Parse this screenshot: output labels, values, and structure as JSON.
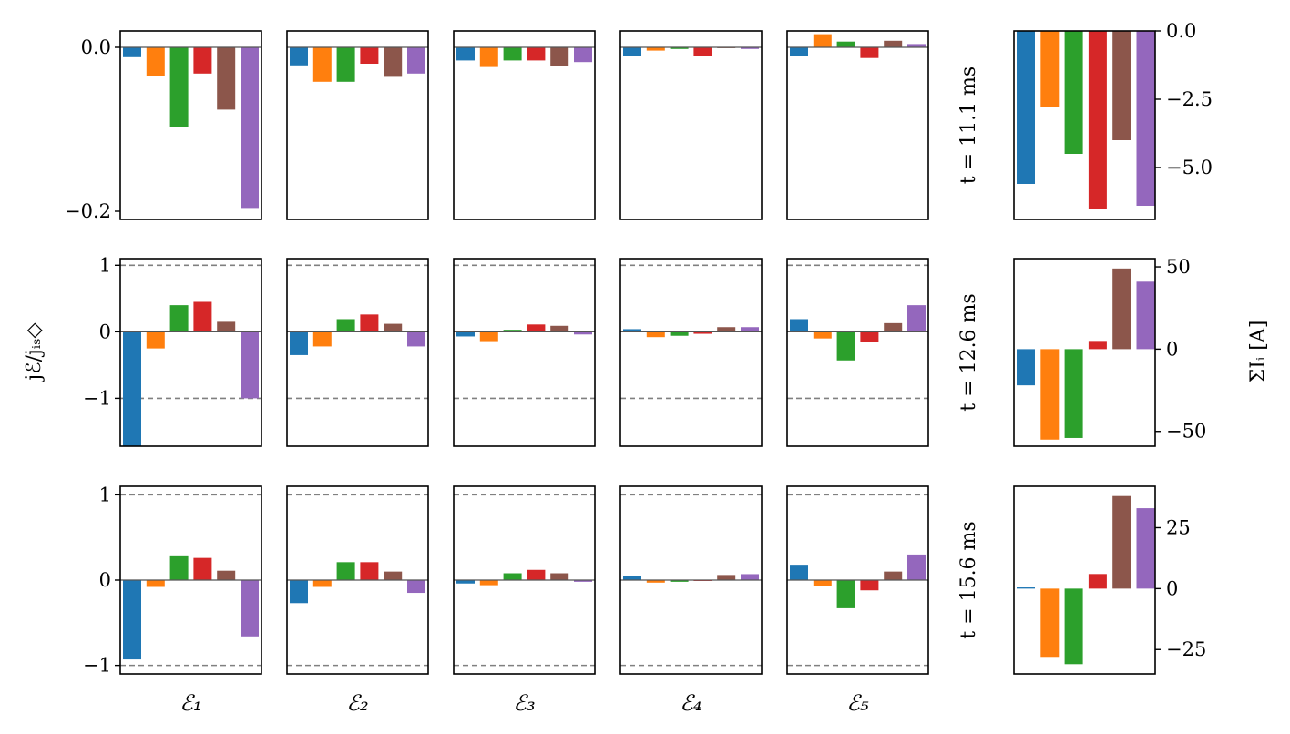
{
  "colors": [
    "#1f77b4",
    "#ff7f0e",
    "#2ca02c",
    "#d62728",
    "#8c564b",
    "#9467bd"
  ],
  "chart_data": {
    "type": "bar",
    "description_axes": "grid of bar charts: 3 time rows x 5 electrode columns, plus a summed-current chart per row",
    "ylabel": "jℰ/jᵢₛ◇",
    "right_ylabel": "ΣIᵢ [A]",
    "columns": [
      "ℰ₁",
      "ℰ₂",
      "ℰ₃",
      "ℰ₄",
      "ℰ₅"
    ],
    "rows": [
      {
        "time_label": "t = 11.1 ms",
        "ylim": [
          -0.21,
          0.02
        ],
        "yticks": [
          0.0,
          -0.2
        ],
        "ytick_labels": [
          "0.0",
          "−0.2"
        ],
        "dashed_lines": [],
        "panels": [
          [
            -0.012,
            -0.035,
            -0.097,
            -0.032,
            -0.076,
            -0.196
          ],
          [
            -0.022,
            -0.042,
            -0.042,
            -0.02,
            -0.036,
            -0.032
          ],
          [
            -0.016,
            -0.024,
            -0.016,
            -0.016,
            -0.023,
            -0.018
          ],
          [
            -0.01,
            -0.004,
            -0.002,
            -0.01,
            -0.001,
            -0.002
          ],
          [
            -0.01,
            0.016,
            0.007,
            -0.013,
            0.008,
            0.004
          ]
        ],
        "sum": {
          "values": [
            -5.6,
            -2.8,
            -4.5,
            -6.5,
            -4.0,
            -6.4
          ],
          "ylim": [
            -6.9,
            0
          ],
          "yticks": [
            0.0,
            -2.5,
            -5.0
          ],
          "ytick_labels": [
            "0.0",
            "−2.5",
            "−5.0"
          ]
        }
      },
      {
        "time_label": "t = 12.6 ms",
        "ylim": [
          -1.72,
          1.1
        ],
        "yticks": [
          1,
          0,
          -1
        ],
        "ytick_labels": [
          "1",
          "0",
          "−1"
        ],
        "dashed_lines": [
          1,
          -1
        ],
        "panels": [
          [
            -1.72,
            -0.25,
            0.4,
            0.45,
            0.15,
            -1.0
          ],
          [
            -0.35,
            -0.22,
            0.19,
            0.26,
            0.12,
            -0.22
          ],
          [
            -0.07,
            -0.14,
            0.03,
            0.11,
            0.09,
            -0.04
          ],
          [
            0.04,
            -0.08,
            -0.06,
            -0.03,
            0.07,
            0.07
          ],
          [
            0.19,
            -0.1,
            -0.43,
            -0.15,
            0.13,
            0.4
          ]
        ],
        "sum": {
          "values": [
            -22,
            -55,
            -54,
            5,
            49,
            41
          ],
          "ylim": [
            -59,
            55
          ],
          "yticks": [
            50,
            0,
            -50
          ],
          "ytick_labels": [
            "50",
            "0",
            "−50"
          ]
        }
      },
      {
        "time_label": "t = 15.6 ms",
        "ylim": [
          -1.1,
          1.1
        ],
        "yticks": [
          1,
          0,
          -1
        ],
        "ytick_labels": [
          "1",
          "0",
          "−1"
        ],
        "dashed_lines": [
          1,
          -1
        ],
        "panels": [
          [
            -0.93,
            -0.08,
            0.29,
            0.26,
            0.11,
            -0.66
          ],
          [
            -0.27,
            -0.08,
            0.21,
            0.21,
            0.1,
            -0.15
          ],
          [
            -0.04,
            -0.06,
            0.08,
            0.12,
            0.08,
            -0.02
          ],
          [
            0.05,
            -0.03,
            -0.02,
            -0.01,
            0.06,
            0.07
          ],
          [
            0.18,
            -0.07,
            -0.33,
            -0.12,
            0.1,
            0.3
          ]
        ],
        "sum": {
          "values": [
            0.5,
            -28,
            -31,
            6,
            38,
            33
          ],
          "ylim": [
            -35,
            42
          ],
          "yticks": [
            25,
            0,
            -25
          ],
          "ytick_labels": [
            "25",
            "0",
            "−25"
          ]
        }
      }
    ]
  }
}
